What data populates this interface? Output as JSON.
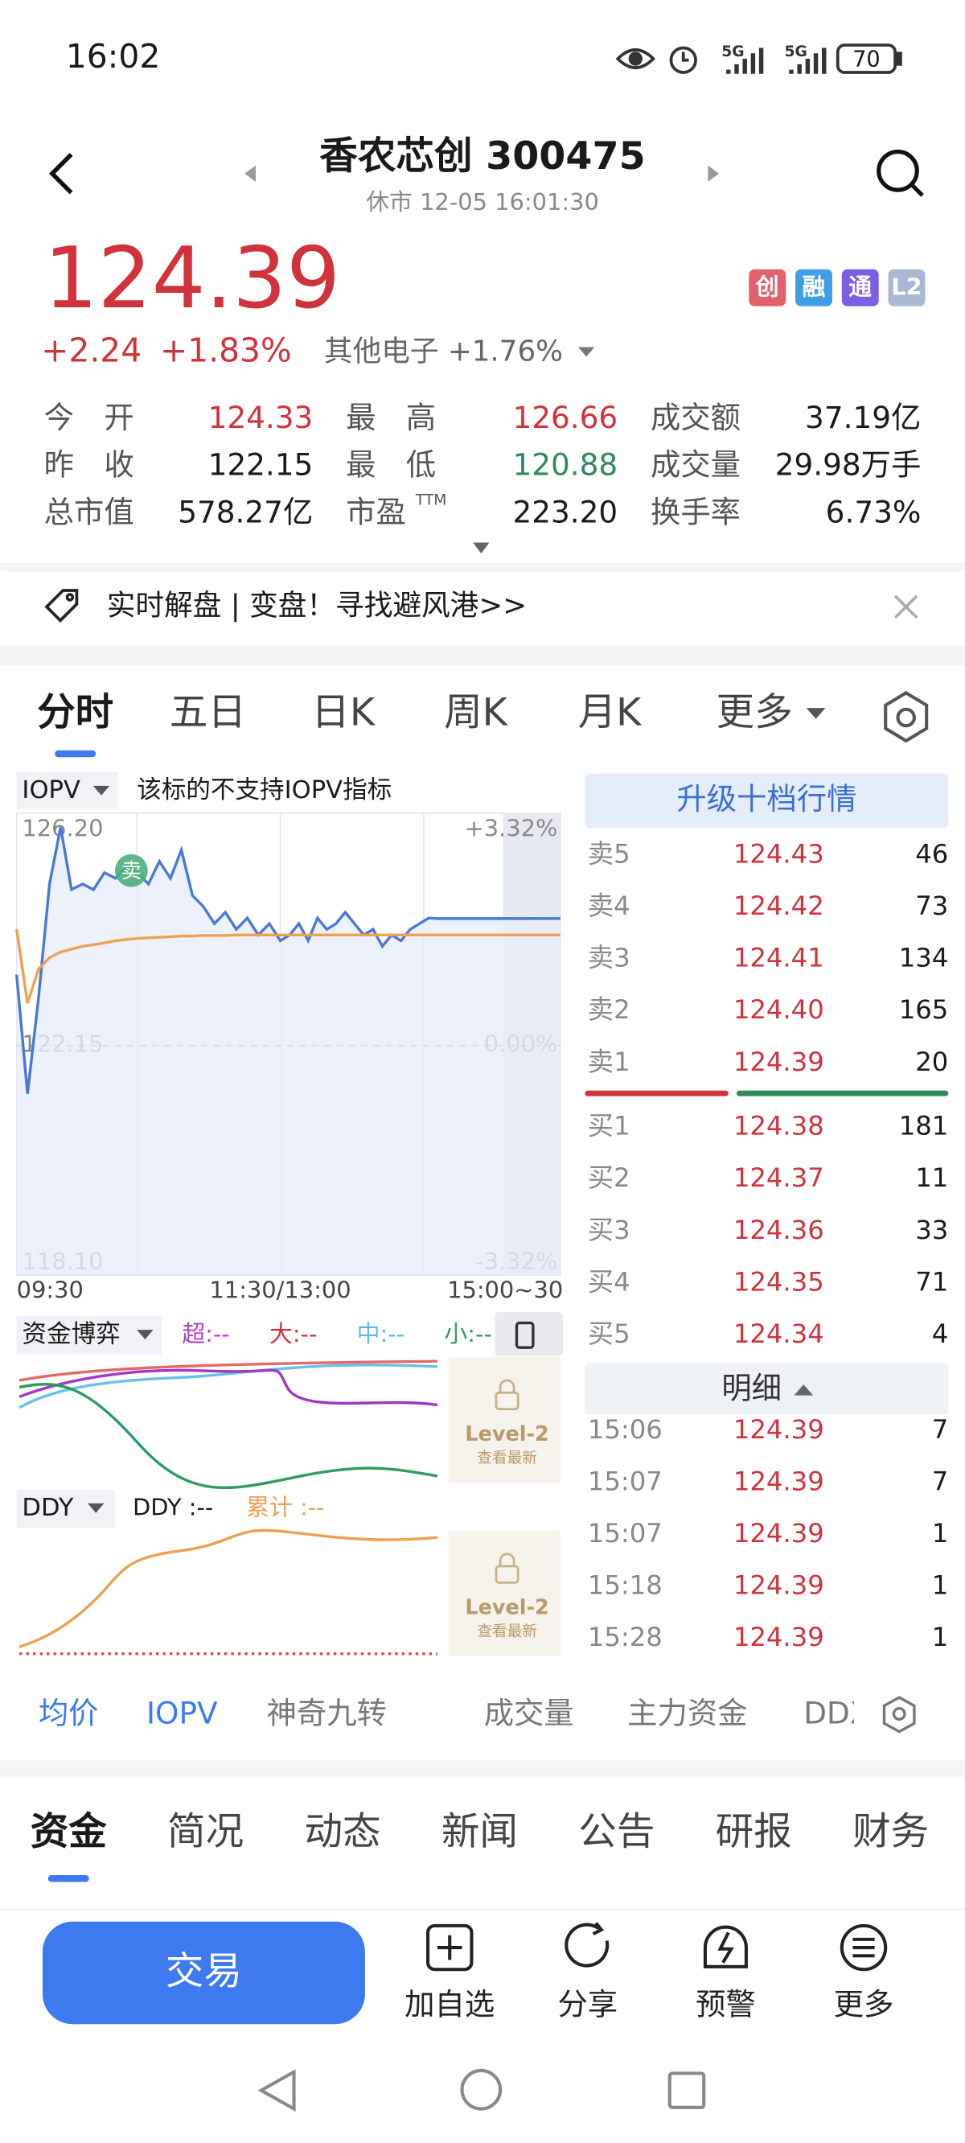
{
  "status_bar": {
    "time": "16:02",
    "battery": "70"
  },
  "header": {
    "title": "香农芯创 300475",
    "subtitle": "休市 12-05 16:01:30"
  },
  "quote": {
    "price": "124.39",
    "change": "+2.24",
    "change_pct": "+1.83%",
    "sector": "其他电子 +1.76%",
    "badges": [
      "创",
      "融",
      "通",
      "L2"
    ]
  },
  "stats": [
    [
      {
        "label": "今　开",
        "value": "124.33"
      },
      {
        "label": "最　高",
        "value": "126.66"
      },
      {
        "label": "成交额",
        "value": "37.19亿"
      }
    ],
    [
      {
        "label": "昨　收",
        "value": "122.15"
      },
      {
        "label": "最　低",
        "value": "120.88"
      },
      {
        "label": "成交量",
        "value": "29.98万手"
      }
    ],
    [
      {
        "label": "总市值",
        "value": "578.27亿"
      },
      {
        "label": "市盈",
        "sup": "TTM",
        "value": "223.20"
      },
      {
        "label": "换手率",
        "value": "6.73%"
      }
    ]
  ],
  "banner": "实时解盘 | 变盘！寻找避风港>>",
  "tabs": [
    "分时",
    "五日",
    "日K",
    "周K",
    "月K",
    "更多"
  ],
  "intraday": {
    "indicator": "IOPV",
    "note": "该标的不支持IOPV指标",
    "marker": "卖",
    "ylim": [
      118.1,
      126.2
    ],
    "yticks": [
      {
        "value": 126.2,
        "label": "126.20"
      },
      {
        "value": 122.15,
        "label": "122.15"
      },
      {
        "value": 118.1,
        "label": "118.10"
      }
    ],
    "pct_labels": [
      "+3.32%",
      "0.00%",
      "-3.32%"
    ],
    "x_labels": [
      "09:30",
      "11:30/13:00",
      "15:00~30"
    ],
    "price": [
      123.4,
      121.3,
      123.0,
      125.0,
      126.0,
      124.9,
      125.0,
      124.9,
      125.2,
      125.1,
      125.3,
      125.2,
      125.0,
      125.4,
      125.1,
      125.6,
      124.8,
      124.6,
      124.3,
      124.5,
      124.2,
      124.4,
      124.1,
      124.3,
      124.0,
      124.1,
      124.3,
      124.0,
      124.4,
      124.2,
      124.3,
      124.5,
      124.3,
      124.1,
      124.2,
      123.9,
      124.1,
      124.0,
      124.2,
      124.3,
      124.4,
      124.39,
      124.39,
      124.39,
      124.39,
      124.39,
      124.39,
      124.39,
      124.39
    ],
    "avg": [
      124.2,
      122.9,
      123.5,
      123.7,
      123.8,
      123.85,
      123.9,
      123.93,
      123.96,
      124.0,
      124.02,
      124.04,
      124.05,
      124.06,
      124.07,
      124.08,
      124.08,
      124.09,
      124.09,
      124.09,
      124.1,
      124.1,
      124.1,
      124.1,
      124.1,
      124.1,
      124.1,
      124.1,
      124.1,
      124.1,
      124.1,
      124.1,
      124.1,
      124.1,
      124.1,
      124.1,
      124.1,
      124.1,
      124.1,
      124.1,
      124.1,
      124.1,
      124.1,
      124.1,
      124.1,
      124.1,
      124.1,
      124.1,
      124.1
    ]
  },
  "fund_flow": {
    "title": "资金博弈",
    "items": [
      "超:--",
      "大:--",
      "中:--",
      "小:--"
    ],
    "locked": "Level-2",
    "locked_hint": "查看最新"
  },
  "ddy": {
    "title": "DDY",
    "items": [
      "DDY :--",
      "累计 :--"
    ],
    "locked": "Level-2",
    "locked_hint": "查看最新"
  },
  "order_book": {
    "upgrade": "升级十档行情",
    "sells": [
      {
        "label": "卖5",
        "price": "124.43",
        "vol": "46"
      },
      {
        "label": "卖4",
        "price": "124.42",
        "vol": "73"
      },
      {
        "label": "卖3",
        "price": "124.41",
        "vol": "134"
      },
      {
        "label": "卖2",
        "price": "124.40",
        "vol": "165"
      },
      {
        "label": "卖1",
        "price": "124.39",
        "vol": "20"
      }
    ],
    "buys": [
      {
        "label": "买1",
        "price": "124.38",
        "vol": "181"
      },
      {
        "label": "买2",
        "price": "124.37",
        "vol": "11"
      },
      {
        "label": "买3",
        "price": "124.36",
        "vol": "33"
      },
      {
        "label": "买4",
        "price": "124.35",
        "vol": "71"
      },
      {
        "label": "买5",
        "price": "124.34",
        "vol": "4"
      }
    ],
    "detail_title": "明细",
    "trades": [
      {
        "time": "15:06",
        "price": "124.39",
        "vol": "7"
      },
      {
        "time": "15:07",
        "price": "124.39",
        "vol": "7"
      },
      {
        "time": "15:07",
        "price": "124.39",
        "vol": "1"
      },
      {
        "time": "15:18",
        "price": "124.39",
        "vol": "1"
      },
      {
        "time": "15:28",
        "price": "124.39",
        "vol": "1"
      }
    ]
  },
  "indicator_tabs": [
    "均价",
    "IOPV",
    "神奇九转",
    "成交量",
    "主力资金",
    "DDX"
  ],
  "bottom_tabs": [
    "资金",
    "简况",
    "动态",
    "新闻",
    "公告",
    "研报",
    "财务"
  ],
  "actions": {
    "trade": "交易",
    "items": [
      "加自选",
      "分享",
      "预警",
      "更多"
    ]
  }
}
